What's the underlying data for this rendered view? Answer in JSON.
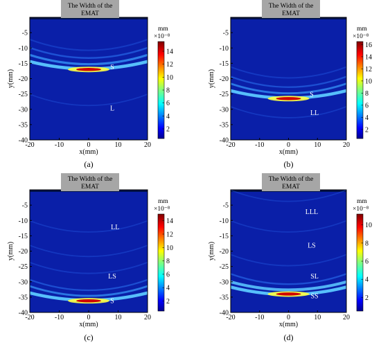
{
  "chart_data": [
    {
      "type": "heatmap",
      "panel_label": "(a)",
      "banner": "The Width of the EMAT",
      "xlabel": "x(mm)",
      "ylabel": "y(mm)",
      "xlim": [
        -20,
        20
      ],
      "ylim": [
        -40,
        0
      ],
      "x_ticks": [
        -20,
        -10,
        0,
        10,
        20
      ],
      "y_ticks": [
        -5,
        -10,
        -15,
        -20,
        -25,
        -30,
        -35,
        -40
      ],
      "colorbar": {
        "unit": "mm",
        "exponent": "×10⁻⁸",
        "ticks": [
          2,
          4,
          6,
          8,
          10,
          12,
          14
        ],
        "max": 15.5,
        "colormap": "jet"
      },
      "peak": {
        "x": 0,
        "y": -17,
        "value": 15.5
      },
      "wave_bands": [
        {
          "y": -17,
          "strength": 1.0
        },
        {
          "y": -15.5,
          "strength": 0.55
        },
        {
          "y": -13.5,
          "strength": 0.32
        },
        {
          "y": -11,
          "strength": 0.18
        },
        {
          "y": -29,
          "strength": 0.08
        }
      ],
      "annotations": [
        {
          "text": "S",
          "x": 8,
          "y": -16
        },
        {
          "text": "L",
          "x": 8,
          "y": -29.5
        }
      ]
    },
    {
      "type": "heatmap",
      "panel_label": "(b)",
      "banner": "The Width of the EMAT",
      "xlabel": "x(mm)",
      "ylabel": "y(mm)",
      "xlim": [
        -20,
        20
      ],
      "ylim": [
        -40,
        0
      ],
      "x_ticks": [
        -20,
        -10,
        0,
        10,
        20
      ],
      "y_ticks": [
        -5,
        -10,
        -15,
        -20,
        -25,
        -30,
        -35,
        -40
      ],
      "colorbar": {
        "unit": "mm",
        "exponent": "×10⁻⁸",
        "ticks": [
          2,
          4,
          6,
          8,
          10,
          12,
          14,
          16
        ],
        "max": 16.5,
        "colormap": "jet"
      },
      "peak": {
        "x": 0,
        "y": -26.5,
        "value": 16.5
      },
      "wave_bands": [
        {
          "y": -26.5,
          "strength": 1.0
        },
        {
          "y": -25,
          "strength": 0.45
        },
        {
          "y": -23,
          "strength": 0.25
        },
        {
          "y": -20,
          "strength": 0.15
        },
        {
          "y": -33,
          "strength": 0.1
        }
      ],
      "annotations": [
        {
          "text": "S",
          "x": 8,
          "y": -25
        },
        {
          "text": "LL",
          "x": 9,
          "y": -31
        }
      ]
    },
    {
      "type": "heatmap",
      "panel_label": "(c)",
      "banner": "The Width of the EMAT",
      "xlabel": "x(mm)",
      "ylabel": "y(mm)",
      "xlim": [
        -20,
        20
      ],
      "ylim": [
        -40,
        0
      ],
      "x_ticks": [
        -20,
        -10,
        0,
        10,
        20
      ],
      "y_ticks": [
        -5,
        -10,
        -15,
        -20,
        -25,
        -30,
        -35,
        -40
      ],
      "colorbar": {
        "unit": "mm",
        "exponent": "×10⁻⁸",
        "ticks": [
          2,
          4,
          6,
          8,
          10,
          12,
          14
        ],
        "max": 15,
        "colormap": "jet"
      },
      "peak": {
        "x": 0,
        "y": -36.2,
        "value": 15
      },
      "wave_bands": [
        {
          "y": -36.2,
          "strength": 1.0
        },
        {
          "y": -34.8,
          "strength": 0.45
        },
        {
          "y": -33,
          "strength": 0.25
        },
        {
          "y": -27.5,
          "strength": 0.14
        },
        {
          "y": -22,
          "strength": 0.1
        },
        {
          "y": -14,
          "strength": 0.08
        }
      ],
      "annotations": [
        {
          "text": "LL",
          "x": 9,
          "y": -12
        },
        {
          "text": "LS",
          "x": 8,
          "y": -28
        },
        {
          "text": "S",
          "x": 8,
          "y": -36
        }
      ]
    },
    {
      "type": "heatmap",
      "panel_label": "(d)",
      "banner": "The Width of the EMAT",
      "xlabel": "x(mm)",
      "ylabel": "y(mm)",
      "xlim": [
        -20,
        20
      ],
      "ylim": [
        -40,
        0
      ],
      "x_ticks": [
        -20,
        -10,
        0,
        10,
        20
      ],
      "y_ticks": [
        -5,
        -10,
        -15,
        -20,
        -25,
        -30,
        -35,
        -40
      ],
      "colorbar": {
        "unit": "mm",
        "exponent": "×10⁻⁸",
        "ticks": [
          2,
          4,
          6,
          8,
          10
        ],
        "max": 11.2,
        "colormap": "jet"
      },
      "peak": {
        "x": 0,
        "y": -34,
        "value": 11.2
      },
      "wave_bands": [
        {
          "y": -34.3,
          "strength": 1.0
        },
        {
          "y": -32.8,
          "strength": 0.85
        },
        {
          "y": -31,
          "strength": 0.3
        },
        {
          "y": -25,
          "strength": 0.1
        },
        {
          "y": -14,
          "strength": 0.08
        },
        {
          "y": -4,
          "strength": 0.08
        }
      ],
      "annotations": [
        {
          "text": "LLL",
          "x": 8,
          "y": -7
        },
        {
          "text": "LS",
          "x": 8,
          "y": -18
        },
        {
          "text": "SL",
          "x": 9,
          "y": -28
        },
        {
          "text": "SS",
          "x": 9,
          "y": -34.5
        }
      ]
    }
  ]
}
